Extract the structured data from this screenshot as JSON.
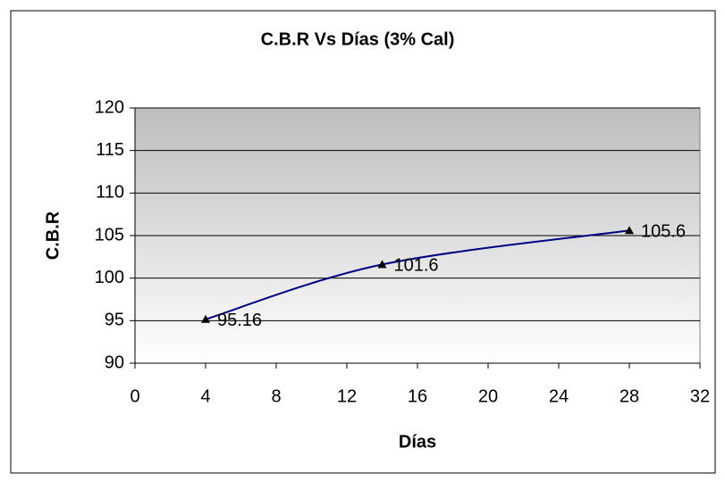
{
  "chart_data": {
    "type": "line",
    "title": "C.B.R Vs Días (3% Cal)",
    "x_label": "Días",
    "y_label": "C.B.R",
    "x": [
      4,
      14,
      28
    ],
    "series": [
      {
        "name": "C.B.R",
        "color": "#000080",
        "values": [
          95.16,
          101.6,
          105.6
        ]
      }
    ],
    "xlim": [
      0,
      32
    ],
    "xticks": [
      0,
      4,
      8,
      12,
      16,
      20,
      24,
      28,
      32
    ],
    "ylim": [
      90,
      120
    ],
    "yticks": [
      90,
      95,
      100,
      105,
      110,
      115,
      120
    ],
    "grid": true,
    "smooth": true
  }
}
